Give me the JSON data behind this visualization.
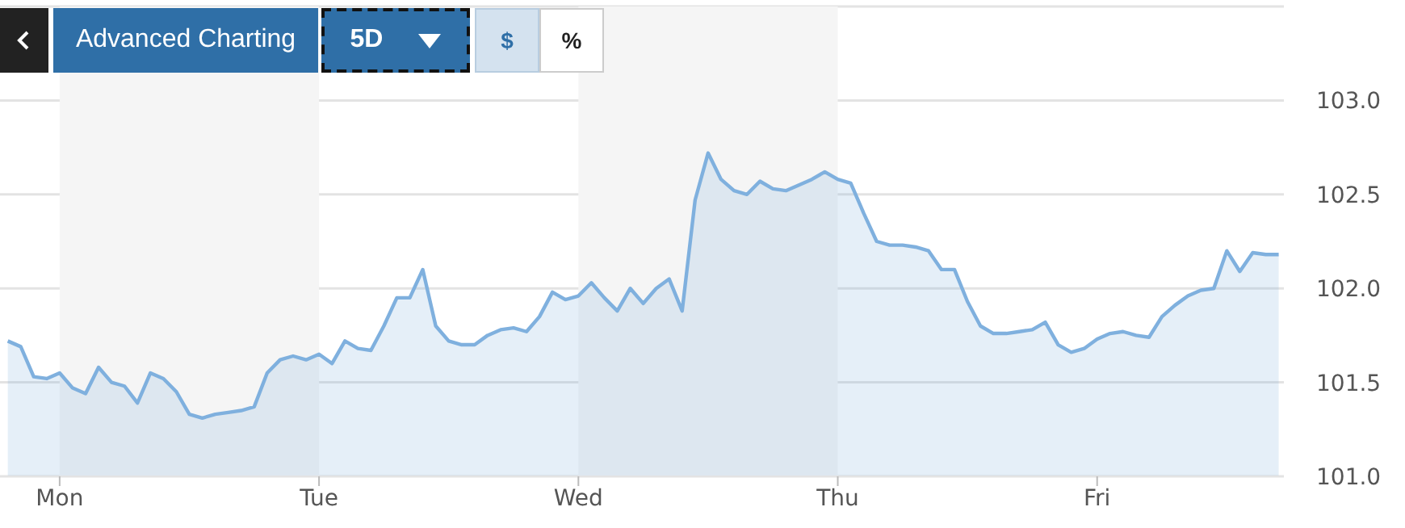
{
  "chart_data": {
    "type": "area",
    "annotations": [
      "Advanced Charting",
      "5D",
      "$",
      "%"
    ],
    "categories": [
      null,
      null,
      null,
      null,
      "Mon",
      null,
      null,
      null,
      null,
      null,
      null,
      null,
      null,
      null,
      null,
      null,
      null,
      null,
      null,
      null,
      null,
      null,
      null,
      null,
      "Tue",
      null,
      null,
      null,
      null,
      null,
      null,
      null,
      null,
      null,
      null,
      null,
      null,
      null,
      null,
      null,
      null,
      null,
      null,
      null,
      "Wed",
      null,
      null,
      null,
      null,
      null,
      null,
      null,
      null,
      null,
      null,
      null,
      null,
      null,
      null,
      null,
      null,
      null,
      null,
      null,
      "Thu",
      null,
      null,
      null,
      null,
      null,
      null,
      null,
      null,
      null,
      null,
      null,
      null,
      null,
      null,
      null,
      null,
      null,
      null,
      null,
      "Fri",
      null,
      null,
      null,
      null,
      null,
      null,
      null,
      null,
      null,
      null,
      null,
      null,
      null,
      null
    ],
    "series": [
      {
        "color": "#7fb0de",
        "values": [
          101.72,
          101.69,
          101.53,
          101.52,
          101.55,
          101.47,
          101.44,
          101.58,
          101.5,
          101.48,
          101.39,
          101.55,
          101.52,
          101.45,
          101.33,
          101.31,
          101.33,
          101.34,
          101.35,
          101.37,
          101.55,
          101.62,
          101.64,
          101.62,
          101.65,
          101.6,
          101.72,
          101.68,
          101.67,
          101.8,
          101.95,
          101.95,
          102.1,
          101.8,
          101.72,
          101.7,
          101.7,
          101.75,
          101.78,
          101.79,
          101.77,
          101.85,
          101.98,
          101.94,
          101.96,
          102.03,
          101.95,
          101.88,
          102.0,
          101.92,
          102.0,
          102.05,
          101.88,
          102.47,
          102.72,
          102.58,
          102.52,
          102.5,
          102.57,
          102.53,
          102.52,
          102.55,
          102.58,
          102.62,
          102.58,
          102.56,
          102.4,
          102.25,
          102.23,
          102.23,
          102.22,
          102.2,
          102.1,
          102.1,
          101.93,
          101.8,
          101.76,
          101.76,
          101.77,
          101.78,
          101.82,
          101.7,
          101.66,
          101.68,
          101.73,
          101.76,
          101.77,
          101.75,
          101.74,
          101.85,
          101.91,
          101.96,
          101.99,
          102.0,
          102.2,
          102.09,
          102.19,
          102.18,
          102.18
        ]
      }
    ],
    "ylim": [
      101.0,
      103.5
    ],
    "yticks": [
      {
        "value": 101,
        "label": "101.0"
      },
      {
        "value": 101.5,
        "label": "101.5"
      },
      {
        "value": 102,
        "label": "102.0"
      },
      {
        "value": 102.5,
        "label": "102.5"
      },
      {
        "value": 103,
        "label": "103.0"
      }
    ],
    "bands": [
      {
        "axis": "x",
        "from": "Mon",
        "to": "Tue",
        "color": "#f5f5f5"
      },
      {
        "axis": "x",
        "from": "Wed",
        "to": "Thu",
        "color": "#f5f5f5"
      }
    ],
    "grid": "y",
    "marker": "none",
    "line_style": "solid"
  }
}
